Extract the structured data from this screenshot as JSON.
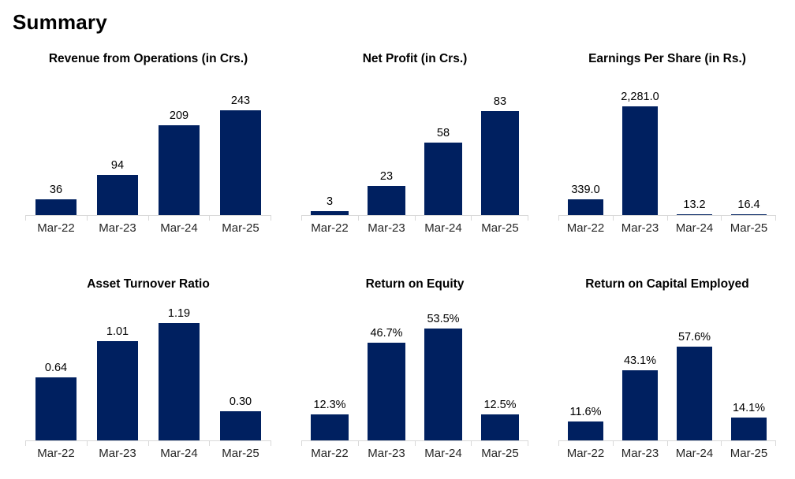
{
  "page": {
    "title": "Summary"
  },
  "colors": {
    "bar": "#002060",
    "axis_line": "#d9d9d9",
    "value_label": "#000000",
    "category_label": "#262626",
    "background": "#ffffff"
  },
  "chart_data": [
    {
      "type": "bar",
      "title": "Revenue from Operations (in Crs.)",
      "categories": [
        "Mar-22",
        "Mar-23",
        "Mar-24",
        "Mar-25"
      ],
      "values": [
        36,
        94,
        209,
        243
      ],
      "value_labels": [
        "36",
        "94",
        "209",
        "243"
      ],
      "ylim": [
        0,
        320
      ],
      "grid": false,
      "legend": "none"
    },
    {
      "type": "bar",
      "title": "Net Profit (in Crs.)",
      "categories": [
        "Mar-22",
        "Mar-23",
        "Mar-24",
        "Mar-25"
      ],
      "values": [
        3,
        23,
        58,
        83
      ],
      "value_labels": [
        "3",
        "23",
        "58",
        "83"
      ],
      "ylim": [
        0,
        110
      ],
      "grid": false,
      "legend": "none"
    },
    {
      "type": "bar",
      "title": "Earnings Per Share (in Rs.)",
      "categories": [
        "Mar-22",
        "Mar-23",
        "Mar-24",
        "Mar-25"
      ],
      "values": [
        339.0,
        2281.0,
        13.2,
        16.4
      ],
      "value_labels": [
        "339.0",
        "2,281.0",
        "13.2",
        "16.4"
      ],
      "ylim": [
        0,
        2900
      ],
      "grid": false,
      "legend": "none"
    },
    {
      "type": "bar",
      "title": "Asset Turnover Ratio",
      "categories": [
        "Mar-22",
        "Mar-23",
        "Mar-24",
        "Mar-25"
      ],
      "values": [
        0.64,
        1.01,
        1.19,
        0.3
      ],
      "value_labels": [
        "0.64",
        "1.01",
        "1.19",
        "0.30"
      ],
      "ylim": [
        0,
        1.4
      ],
      "grid": false,
      "legend": "none"
    },
    {
      "type": "bar",
      "title": "Return on Equity",
      "categories": [
        "Mar-22",
        "Mar-23",
        "Mar-24",
        "Mar-25"
      ],
      "values": [
        12.3,
        46.7,
        53.5,
        12.5
      ],
      "value_labels": [
        "12.3%",
        "46.7%",
        "53.5%",
        "12.5%"
      ],
      "ylim": [
        0,
        66
      ],
      "grid": false,
      "legend": "none"
    },
    {
      "type": "bar",
      "title": "Return on Capital Employed",
      "categories": [
        "Mar-22",
        "Mar-23",
        "Mar-24",
        "Mar-25"
      ],
      "values": [
        11.6,
        43.1,
        57.6,
        14.1
      ],
      "value_labels": [
        "11.6%",
        "43.1%",
        "57.6%",
        "14.1%"
      ],
      "ylim": [
        0,
        85
      ],
      "grid": false,
      "legend": "none"
    }
  ]
}
